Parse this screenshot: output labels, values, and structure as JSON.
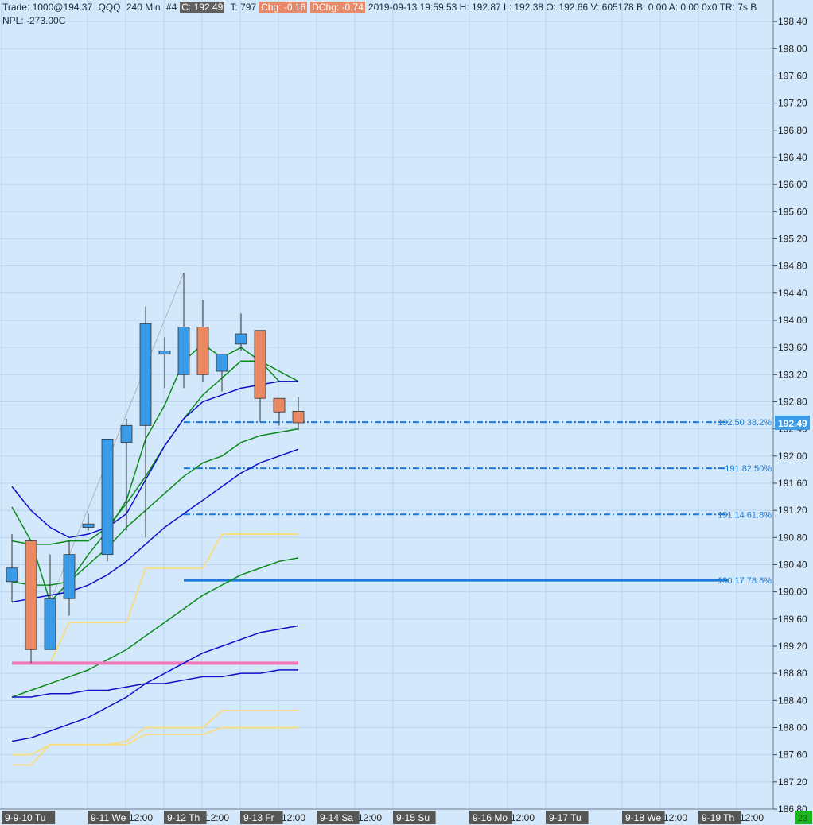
{
  "header": {
    "trade": "Trade: 1000@194.37",
    "symbol": "QQQ",
    "interval": "240 Min",
    "bar_no": "#4",
    "close": "C: 192.49",
    "ticks": "T: 797",
    "chg": "Chg: -0.16",
    "dchg": "DChg: -0.74",
    "info": "2019-09-13 19:59:53 H: 192.87 L: 192.38 O: 192.66 V: 605178 B: 0.00 A: 0.00 0x0 TR: 7s B",
    "npl": "NPL: -273.00C"
  },
  "colors": {
    "background": "#d4e8fb",
    "grid": "#b7d4ef",
    "up_candle": "#3a9be8",
    "down_candle": "#e98861",
    "green_line": "#0a8a1a",
    "blue_line": "#1010c8",
    "yellow_line": "#f6dd8a",
    "pink_line": "#f07ab8",
    "fib_line": "#1a7ad8",
    "price_tag": "#3a9be8",
    "corner_badge": "#1db51d"
  },
  "chart_data": {
    "type": "candlestick",
    "timeframe": "240 Min",
    "ylim": [
      186.8,
      198.6
    ],
    "yticks": [
      198.4,
      198.0,
      197.6,
      197.2,
      196.8,
      196.4,
      196.0,
      195.6,
      195.2,
      194.8,
      194.4,
      194.0,
      193.6,
      193.2,
      192.8,
      192.4,
      192.0,
      191.6,
      191.2,
      190.8,
      190.4,
      190.0,
      189.6,
      189.2,
      188.8,
      188.4,
      188.0,
      187.6,
      187.2,
      186.8
    ],
    "ytick_labels": [
      "198.40",
      "198.00",
      "197.60",
      "197.20",
      "196.80",
      "196.40",
      "196.00",
      "195.60",
      "195.20",
      "194.80",
      "194.40",
      "194.00",
      "193.60",
      "193.20",
      "192.80",
      "192.40",
      "192.00",
      "191.60",
      "191.20",
      "190.80",
      "190.40",
      "190.00",
      "189.60",
      "189.20",
      "188.80",
      "188.40",
      "188.00",
      "187.60",
      "187.20",
      "186.80"
    ],
    "xtick_labels": [
      {
        "slot": 0,
        "text": "9-9-10 Tu",
        "style": "date"
      },
      {
        "slot": 4.5,
        "text": "9-11 We",
        "style": "date"
      },
      {
        "slot": 6.5,
        "text": "12:00",
        "style": "time"
      },
      {
        "slot": 8.5,
        "text": "9-12 Th",
        "style": "date"
      },
      {
        "slot": 10.5,
        "text": "12:00",
        "style": "time"
      },
      {
        "slot": 12.5,
        "text": "9-13 Fr",
        "style": "date"
      },
      {
        "slot": 14.5,
        "text": "12:00",
        "style": "time"
      },
      {
        "slot": 16.5,
        "text": "9-14 Sa",
        "style": "date"
      },
      {
        "slot": 18.5,
        "text": "12:00",
        "style": "time"
      },
      {
        "slot": 20.5,
        "text": "9-15 Su",
        "style": "date"
      },
      {
        "slot": 24.5,
        "text": "9-16 Mo",
        "style": "date"
      },
      {
        "slot": 26.5,
        "text": "12:00",
        "style": "time"
      },
      {
        "slot": 28.5,
        "text": "9-17 Tu",
        "style": "date"
      },
      {
        "slot": 32.5,
        "text": "9-18 We",
        "style": "date"
      },
      {
        "slot": 34.5,
        "text": "12:00",
        "style": "time"
      },
      {
        "slot": 36.5,
        "text": "9-19 Th",
        "style": "date"
      },
      {
        "slot": 38.5,
        "text": "12:00",
        "style": "time"
      }
    ],
    "candles": [
      {
        "o": 190.15,
        "h": 190.85,
        "l": 189.85,
        "c": 190.35
      },
      {
        "o": 190.75,
        "h": 190.75,
        "l": 188.95,
        "c": 189.15
      },
      {
        "o": 189.15,
        "h": 190.55,
        "l": 189.15,
        "c": 189.9
      },
      {
        "o": 189.9,
        "h": 190.75,
        "l": 189.65,
        "c": 190.55
      },
      {
        "o": 190.95,
        "h": 191.15,
        "l": 190.9,
        "c": 191.0
      },
      {
        "o": 190.55,
        "h": 192.25,
        "l": 190.45,
        "c": 192.25
      },
      {
        "o": 192.2,
        "h": 192.55,
        "l": 190.9,
        "c": 192.45
      },
      {
        "o": 192.45,
        "h": 194.2,
        "l": 190.8,
        "c": 193.95
      },
      {
        "o": 193.5,
        "h": 193.75,
        "l": 193.0,
        "c": 193.55
      },
      {
        "o": 193.2,
        "h": 194.7,
        "l": 193.0,
        "c": 193.9
      },
      {
        "o": 193.9,
        "h": 194.3,
        "l": 193.1,
        "c": 193.2
      },
      {
        "o": 193.25,
        "h": 193.5,
        "l": 192.95,
        "c": 193.5
      },
      {
        "o": 193.65,
        "h": 194.1,
        "l": 193.55,
        "c": 193.8
      },
      {
        "o": 193.85,
        "h": 193.85,
        "l": 192.5,
        "c": 192.85
      },
      {
        "o": 192.85,
        "h": 192.85,
        "l": 192.45,
        "c": 192.65
      },
      {
        "o": 192.66,
        "h": 192.87,
        "l": 192.38,
        "c": 192.49
      }
    ],
    "lines": [
      {
        "color": "green",
        "width": 1.5,
        "points": [
          [
            0,
            191.25
          ],
          [
            1,
            190.75
          ],
          [
            2,
            189.85
          ],
          [
            3,
            190.15
          ],
          [
            4,
            190.55
          ],
          [
            5,
            190.9
          ],
          [
            6,
            191.35
          ],
          [
            7,
            192.25
          ],
          [
            8,
            192.75
          ],
          [
            9,
            193.4
          ],
          [
            10,
            193.65
          ],
          [
            11,
            193.45
          ],
          [
            12,
            193.6
          ],
          [
            13,
            193.4
          ],
          [
            14,
            193.25
          ],
          [
            15,
            193.1
          ]
        ]
      },
      {
        "color": "green",
        "width": 1.5,
        "points": [
          [
            0,
            190.75
          ],
          [
            1,
            190.7
          ],
          [
            2,
            190.7
          ],
          [
            3,
            190.75
          ],
          [
            4,
            190.75
          ],
          [
            5,
            190.95
          ],
          [
            6,
            191.3
          ],
          [
            7,
            191.7
          ],
          [
            8,
            192.15
          ],
          [
            9,
            192.55
          ],
          [
            10,
            192.9
          ],
          [
            11,
            193.15
          ],
          [
            12,
            193.4
          ],
          [
            13,
            193.4
          ],
          [
            14,
            193.1
          ],
          [
            15,
            193.1
          ]
        ]
      },
      {
        "color": "blue",
        "width": 1.5,
        "points": [
          [
            0,
            191.55
          ],
          [
            1,
            191.2
          ],
          [
            2,
            190.95
          ],
          [
            3,
            190.8
          ],
          [
            4,
            190.85
          ],
          [
            5,
            190.95
          ],
          [
            6,
            191.15
          ],
          [
            7,
            191.65
          ],
          [
            8,
            192.15
          ],
          [
            9,
            192.55
          ],
          [
            10,
            192.8
          ],
          [
            11,
            192.9
          ],
          [
            12,
            193.0
          ],
          [
            13,
            193.05
          ],
          [
            14,
            193.1
          ],
          [
            15,
            193.1
          ]
        ]
      },
      {
        "color": "green",
        "width": 1.5,
        "points": [
          [
            0,
            190.15
          ],
          [
            1,
            190.1
          ],
          [
            2,
            190.1
          ],
          [
            3,
            190.15
          ],
          [
            4,
            190.4
          ],
          [
            5,
            190.65
          ],
          [
            6,
            190.95
          ],
          [
            7,
            191.2
          ],
          [
            8,
            191.45
          ],
          [
            9,
            191.7
          ],
          [
            10,
            191.9
          ],
          [
            11,
            192.0
          ],
          [
            12,
            192.2
          ],
          [
            13,
            192.3
          ],
          [
            14,
            192.35
          ],
          [
            15,
            192.4
          ]
        ]
      },
      {
        "color": "blue",
        "width": 1.5,
        "points": [
          [
            0,
            189.85
          ],
          [
            1,
            189.9
          ],
          [
            2,
            189.95
          ],
          [
            3,
            190.0
          ],
          [
            4,
            190.1
          ],
          [
            5,
            190.25
          ],
          [
            6,
            190.45
          ],
          [
            7,
            190.7
          ],
          [
            8,
            190.95
          ],
          [
            9,
            191.15
          ],
          [
            10,
            191.35
          ],
          [
            11,
            191.55
          ],
          [
            12,
            191.75
          ],
          [
            13,
            191.9
          ],
          [
            14,
            192.0
          ],
          [
            15,
            192.1
          ]
        ]
      },
      {
        "color": "yellow",
        "width": 2,
        "points": [
          [
            0,
            188.95
          ],
          [
            1,
            188.95
          ],
          [
            2,
            188.95
          ],
          [
            3,
            189.55
          ],
          [
            4,
            189.55
          ],
          [
            5,
            189.55
          ],
          [
            6,
            189.55
          ],
          [
            7,
            190.35
          ],
          [
            8,
            190.35
          ],
          [
            9,
            190.35
          ],
          [
            10,
            190.35
          ],
          [
            11,
            190.85
          ],
          [
            12,
            190.85
          ],
          [
            13,
            190.85
          ],
          [
            14,
            190.85
          ],
          [
            15,
            190.85
          ]
        ]
      },
      {
        "color": "green",
        "width": 1.5,
        "points": [
          [
            0,
            188.45
          ],
          [
            1,
            188.55
          ],
          [
            2,
            188.65
          ],
          [
            3,
            188.75
          ],
          [
            4,
            188.85
          ],
          [
            5,
            189.0
          ],
          [
            6,
            189.15
          ],
          [
            7,
            189.35
          ],
          [
            8,
            189.55
          ],
          [
            9,
            189.75
          ],
          [
            10,
            189.95
          ],
          [
            11,
            190.1
          ],
          [
            12,
            190.25
          ],
          [
            13,
            190.35
          ],
          [
            14,
            190.45
          ],
          [
            15,
            190.5
          ]
        ]
      },
      {
        "color": "pink",
        "width": 4,
        "points": [
          [
            0,
            188.95
          ],
          [
            15,
            188.95
          ]
        ]
      },
      {
        "color": "blue",
        "width": 1.5,
        "points": [
          [
            0,
            188.45
          ],
          [
            1,
            188.45
          ],
          [
            2,
            188.5
          ],
          [
            3,
            188.5
          ],
          [
            4,
            188.55
          ],
          [
            5,
            188.55
          ],
          [
            6,
            188.6
          ],
          [
            7,
            188.65
          ],
          [
            8,
            188.65
          ],
          [
            9,
            188.7
          ],
          [
            10,
            188.75
          ],
          [
            11,
            188.75
          ],
          [
            12,
            188.8
          ],
          [
            13,
            188.8
          ],
          [
            14,
            188.85
          ],
          [
            15,
            188.85
          ]
        ]
      },
      {
        "color": "blue",
        "width": 1.5,
        "points": [
          [
            0,
            187.8
          ],
          [
            1,
            187.85
          ],
          [
            2,
            187.95
          ],
          [
            3,
            188.05
          ],
          [
            4,
            188.15
          ],
          [
            5,
            188.3
          ],
          [
            6,
            188.45
          ],
          [
            7,
            188.65
          ],
          [
            8,
            188.8
          ],
          [
            9,
            188.95
          ],
          [
            10,
            189.1
          ],
          [
            11,
            189.2
          ],
          [
            12,
            189.3
          ],
          [
            13,
            189.4
          ],
          [
            14,
            189.45
          ],
          [
            15,
            189.5
          ]
        ]
      },
      {
        "color": "yellow",
        "width": 2,
        "points": [
          [
            0,
            187.6
          ],
          [
            1,
            187.6
          ],
          [
            2,
            187.75
          ],
          [
            3,
            187.75
          ],
          [
            4,
            187.75
          ],
          [
            5,
            187.75
          ],
          [
            6,
            187.8
          ],
          [
            7,
            188.0
          ],
          [
            8,
            188.0
          ],
          [
            9,
            188.0
          ],
          [
            10,
            188.0
          ],
          [
            11,
            188.25
          ],
          [
            12,
            188.25
          ],
          [
            13,
            188.25
          ],
          [
            14,
            188.25
          ],
          [
            15,
            188.25
          ]
        ]
      },
      {
        "color": "yellow",
        "width": 2,
        "points": [
          [
            0,
            187.45
          ],
          [
            1,
            187.45
          ],
          [
            2,
            187.75
          ],
          [
            3,
            187.75
          ],
          [
            4,
            187.75
          ],
          [
            5,
            187.75
          ],
          [
            6,
            187.75
          ],
          [
            7,
            187.9
          ],
          [
            8,
            187.9
          ],
          [
            9,
            187.9
          ],
          [
            10,
            187.9
          ],
          [
            11,
            188.0
          ],
          [
            12,
            188.0
          ],
          [
            13,
            188.0
          ],
          [
            14,
            188.0
          ],
          [
            15,
            188.0
          ]
        ]
      }
    ],
    "fib_levels": [
      {
        "price": 192.5,
        "label": "192.50 38.2%",
        "style": "dashdot",
        "start_slot": 9,
        "end_slot": 37.5
      },
      {
        "price": 191.82,
        "label": "191.82 50%",
        "style": "dashdot",
        "start_slot": 9,
        "end_slot": 37.5
      },
      {
        "price": 191.14,
        "label": "191.14 61.8%",
        "style": "dashdot",
        "start_slot": 9,
        "end_slot": 37.5
      },
      {
        "price": 190.17,
        "label": "190.17 78.6%",
        "style": "solid",
        "start_slot": 9,
        "end_slot": 37.5
      }
    ],
    "trendline": {
      "from": [
        2,
        189.85
      ],
      "to": [
        9,
        194.7
      ]
    },
    "last_price": "192.49",
    "corner_badge": "23"
  }
}
